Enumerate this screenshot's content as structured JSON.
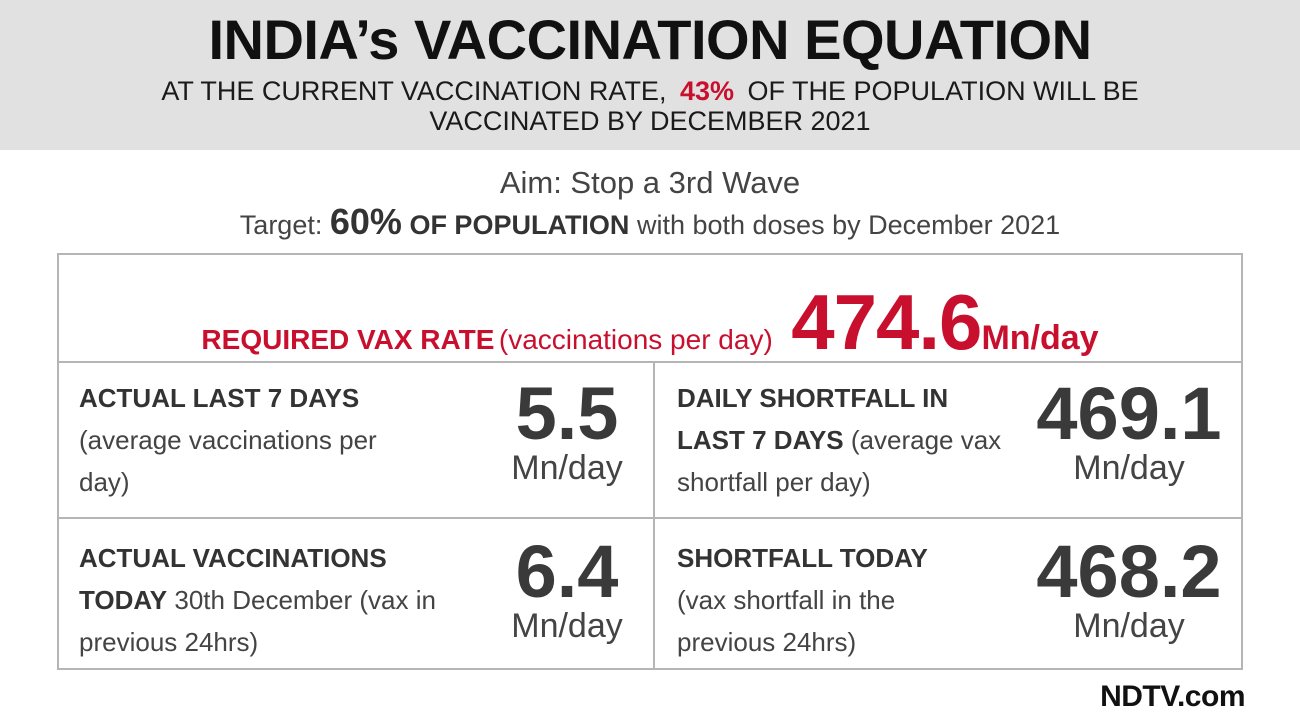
{
  "header": {
    "title": "INDIA’s VACCINATION EQUATION",
    "sub_before": "AT THE CURRENT VACCINATION RATE,",
    "sub_pct": "43%",
    "sub_after": "OF THE POPULATION WILL BE VACCINATED BY DECEMBER 2021"
  },
  "aim": "Aim: Stop a 3rd Wave",
  "target": {
    "prefix": "Target:",
    "pct": "60%",
    "bold": "OF POPULATION",
    "suffix": "with both doses by December 2021"
  },
  "required": {
    "label": "REQUIRED VAX RATE",
    "paren": "(vaccinations per day)",
    "value": "474.6",
    "unit": "Mn/day"
  },
  "cells": [
    {
      "bold": "ACTUAL LAST 7 DAYS",
      "text": "(average vaccinations per day)",
      "value": "5.5",
      "unit": "Mn/day"
    },
    {
      "bold": "DAILY SHORTFALL IN LAST 7 DAYS",
      "text": "(average vax shortfall per day)",
      "value": "469.1",
      "unit": "Mn/day"
    },
    {
      "bold": "ACTUAL VACCINATIONS TODAY",
      "text": "30th December (vax in previous 24hrs)",
      "value": "6.4",
      "unit": "Mn/day"
    },
    {
      "bold": "SHORTFALL TODAY",
      "text": "(vax shortfall in the previous 24hrs)",
      "value": "468.2",
      "unit": "Mn/day"
    }
  ],
  "logo": "NDTV.com",
  "colors": {
    "accent": "#c8102e",
    "header_bg": "#e1e1e1",
    "border": "#b5b5b5"
  }
}
